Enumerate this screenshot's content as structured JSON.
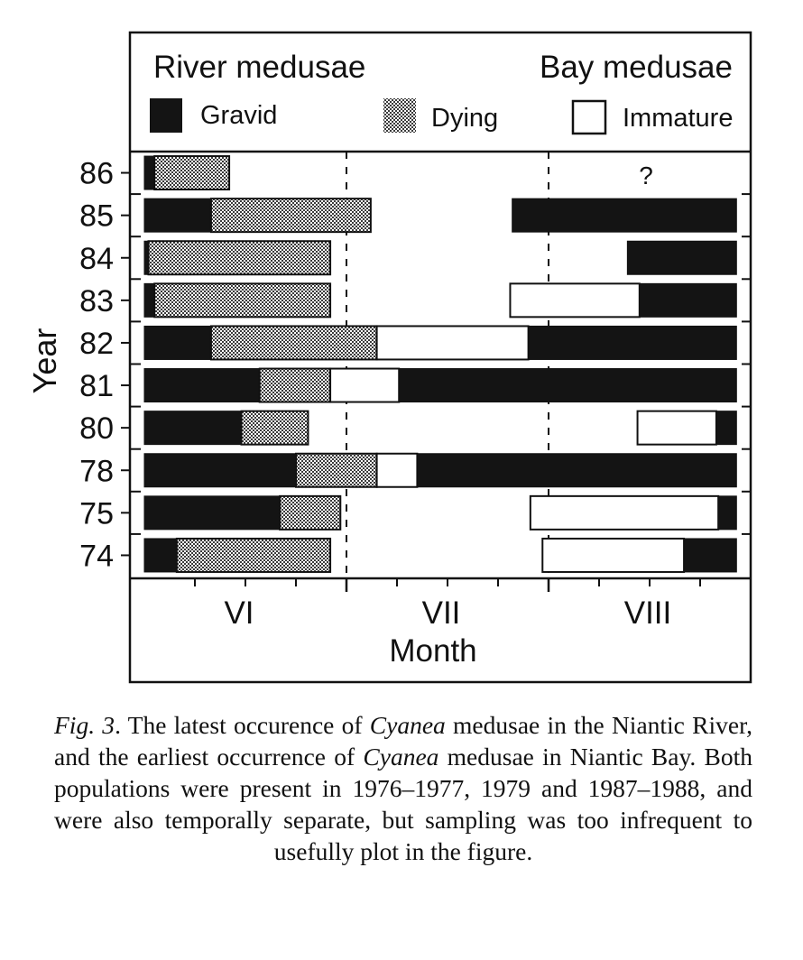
{
  "legend": {
    "left_title": "River medusae",
    "right_title": "Bay medusae",
    "items": [
      {
        "label": "Gravid",
        "pattern": "solid-black"
      },
      {
        "label": "Dying",
        "pattern": "stipple"
      },
      {
        "label": "Immature",
        "pattern": "white"
      }
    ]
  },
  "colors": {
    "gravid": "#141414",
    "dying": "#a8a8a8",
    "immature": "#ffffff",
    "ink": "#111111"
  },
  "chart_data": {
    "type": "bar",
    "orientation": "horizontal",
    "stacked": true,
    "ylabel": "Year",
    "xlabel": "Month",
    "x_ticks": [
      "VI",
      "VII",
      "VIII"
    ],
    "x_domain_months": [
      6,
      9
    ],
    "categories": [
      "86",
      "85",
      "84",
      "83",
      "82",
      "81",
      "80",
      "78",
      "75",
      "74"
    ],
    "question_mark": {
      "year": "86",
      "text": "?"
    },
    "rows": [
      {
        "year": "86",
        "river": [
          {
            "state": "gravid",
            "from": 6.0,
            "to": 6.05
          },
          {
            "state": "dying",
            "from": 6.05,
            "to": 6.42
          }
        ],
        "bay": []
      },
      {
        "year": "85",
        "river": [
          {
            "state": "gravid",
            "from": 6.0,
            "to": 6.33
          },
          {
            "state": "dying",
            "from": 6.33,
            "to": 7.12
          }
        ],
        "bay": [
          {
            "state": "gravid",
            "from": 7.82,
            "to": 8.93
          }
        ]
      },
      {
        "year": "84",
        "river": [
          {
            "state": "gravid",
            "from": 6.0,
            "to": 6.02
          },
          {
            "state": "dying",
            "from": 6.02,
            "to": 6.92
          }
        ],
        "bay": [
          {
            "state": "gravid",
            "from": 8.39,
            "to": 8.93
          }
        ]
      },
      {
        "year": "83",
        "river": [
          {
            "state": "gravid",
            "from": 6.0,
            "to": 6.05
          },
          {
            "state": "dying",
            "from": 6.05,
            "to": 6.92
          }
        ],
        "bay": [
          {
            "state": "immature",
            "from": 7.81,
            "to": 8.45
          },
          {
            "state": "gravid",
            "from": 8.45,
            "to": 8.93
          }
        ]
      },
      {
        "year": "82",
        "river": [
          {
            "state": "gravid",
            "from": 6.0,
            "to": 6.33
          },
          {
            "state": "dying",
            "from": 6.33,
            "to": 7.15
          }
        ],
        "bay": [
          {
            "state": "immature",
            "from": 7.15,
            "to": 7.9
          },
          {
            "state": "gravid",
            "from": 7.9,
            "to": 8.93
          }
        ]
      },
      {
        "year": "81",
        "river": [
          {
            "state": "gravid",
            "from": 6.0,
            "to": 6.57
          },
          {
            "state": "dying",
            "from": 6.57,
            "to": 6.92
          }
        ],
        "bay": [
          {
            "state": "immature",
            "from": 6.92,
            "to": 7.26
          },
          {
            "state": "gravid",
            "from": 7.26,
            "to": 8.93
          }
        ]
      },
      {
        "year": "80",
        "river": [
          {
            "state": "gravid",
            "from": 6.0,
            "to": 6.48
          },
          {
            "state": "dying",
            "from": 6.48,
            "to": 6.81
          }
        ],
        "bay": [
          {
            "state": "immature",
            "from": 8.44,
            "to": 8.83
          },
          {
            "state": "gravid",
            "from": 8.83,
            "to": 8.93
          }
        ]
      },
      {
        "year": "78",
        "river": [
          {
            "state": "gravid",
            "from": 6.0,
            "to": 6.75
          },
          {
            "state": "dying",
            "from": 6.75,
            "to": 7.15
          }
        ],
        "bay": [
          {
            "state": "immature",
            "from": 7.15,
            "to": 7.35
          },
          {
            "state": "gravid",
            "from": 7.35,
            "to": 8.93
          }
        ]
      },
      {
        "year": "75",
        "river": [
          {
            "state": "gravid",
            "from": 6.0,
            "to": 6.67
          },
          {
            "state": "dying",
            "from": 6.67,
            "to": 6.97
          }
        ],
        "bay": [
          {
            "state": "immature",
            "from": 7.91,
            "to": 8.84
          },
          {
            "state": "gravid",
            "from": 8.84,
            "to": 8.93
          }
        ]
      },
      {
        "year": "74",
        "river": [
          {
            "state": "gravid",
            "from": 6.0,
            "to": 6.16
          },
          {
            "state": "dying",
            "from": 6.16,
            "to": 6.92
          }
        ],
        "bay": [
          {
            "state": "immature",
            "from": 7.97,
            "to": 8.67
          },
          {
            "state": "gravid",
            "from": 8.67,
            "to": 8.93
          }
        ]
      }
    ]
  },
  "caption": {
    "fig_label": "Fig. 3",
    "part1": ". The latest occurence of ",
    "genus1": "Cyanea",
    "part2": " medusae in the Niantic River, and the earliest occurrence of ",
    "genus2": "Cyanea",
    "part3": " medusae in Niantic Bay. Both populations were present in 1976–1977, 1979 and 1987–1988, and were also temporally separate, but sampling was too infrequent to usefully plot in the figure."
  }
}
